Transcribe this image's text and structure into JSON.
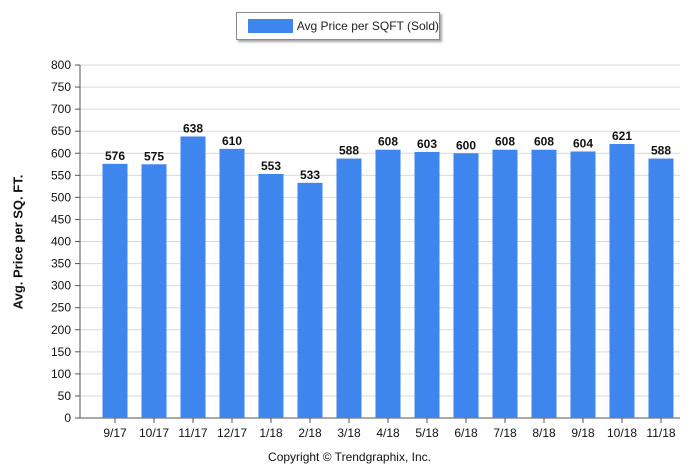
{
  "legend": {
    "label": "Avg Price per SQFT (Sold)"
  },
  "copyright": "Copyright © Trendgraphix, Inc.",
  "colors": {
    "bar": "#3f85ee",
    "grid": "#d9d9d9",
    "axis": "#555555"
  },
  "chart_data": {
    "type": "bar",
    "categories": [
      "9/17",
      "10/17",
      "11/17",
      "12/17",
      "1/18",
      "2/18",
      "3/18",
      "4/18",
      "5/18",
      "6/18",
      "7/18",
      "8/18",
      "9/18",
      "10/18",
      "11/18"
    ],
    "series": [
      {
        "name": "Avg Price per SQFT (Sold)",
        "values": [
          576,
          575,
          638,
          610,
          553,
          533,
          588,
          608,
          603,
          600,
          608,
          608,
          604,
          621,
          588
        ]
      }
    ],
    "ylabel": "Avg. Price per SQ. FT.",
    "xlabel": "",
    "ylim": [
      0,
      800
    ],
    "yticks": [
      0,
      50,
      100,
      150,
      200,
      250,
      300,
      350,
      400,
      450,
      500,
      550,
      600,
      650,
      700,
      750,
      800
    ],
    "grid": true,
    "legend_position": "top-center",
    "data_labels": true
  }
}
